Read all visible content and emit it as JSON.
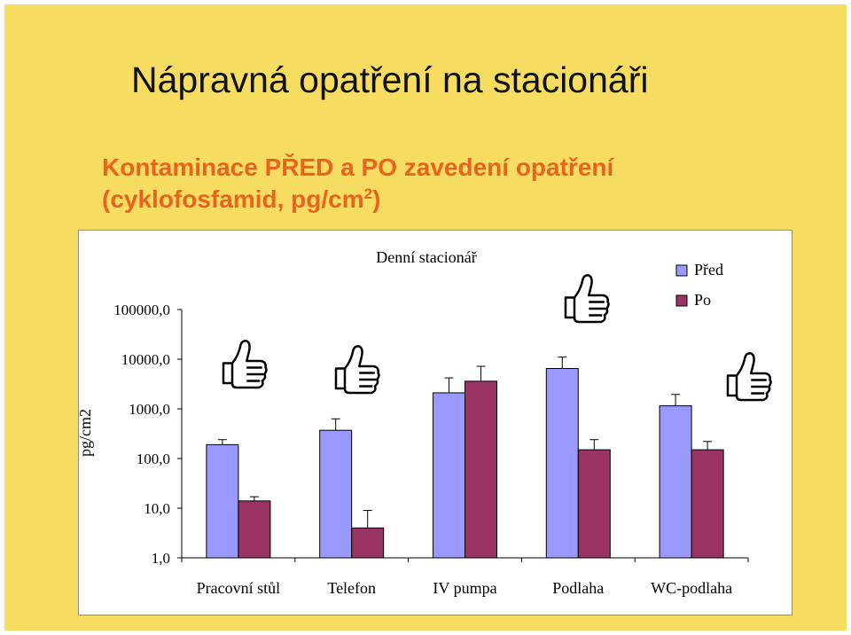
{
  "slide": {
    "title": "Nápravná opatření na stacionáři",
    "subtitle_line1": "Kontaminace PŘED a PO zavedení opatření",
    "subtitle_line2_prefix": "(cyklofosfamid, pg/cm",
    "subtitle_line2_sup": "2",
    "subtitle_line2_suffix": ")"
  },
  "colors": {
    "background": "#f7dc62",
    "subtitle": "#e8641e",
    "series_pred": "#9999ff",
    "series_po": "#993366"
  },
  "icons": {
    "thumbs": [
      "thumbs-up-icon",
      "thumbs-up-icon",
      "thumbs-up-icon",
      "thumbs-up-icon"
    ]
  },
  "chart_data": {
    "type": "bar",
    "title": "Denní stacionář",
    "ylabel": "pg/cm2",
    "xlabel": "",
    "yscale": "log",
    "ylim": [
      1,
      100000
    ],
    "yticks": [
      1,
      10,
      100,
      1000,
      10000,
      100000
    ],
    "ytick_labels": [
      "1,0",
      "10,0",
      "100,0",
      "1000,0",
      "10000,0",
      "100000,0"
    ],
    "categories": [
      "Pracovní stůl",
      "Telefon",
      "IV pumpa",
      "Podlaha",
      "WC-podlaha"
    ],
    "series": [
      {
        "name": "Před",
        "values": [
          190,
          370,
          2100,
          6500,
          1150
        ],
        "error_upper": [
          240,
          630,
          4200,
          11000,
          1950
        ]
      },
      {
        "name": "Po",
        "values": [
          14,
          4,
          3600,
          150,
          150
        ],
        "error_upper": [
          17,
          9,
          7200,
          240,
          220
        ]
      }
    ],
    "legend": {
      "position": "top-right"
    },
    "grid": false
  }
}
